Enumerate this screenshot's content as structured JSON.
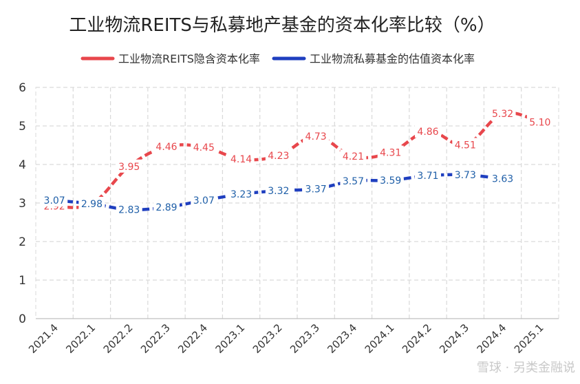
{
  "chart_data": {
    "type": "line",
    "title": "工业物流REITS与私募地产基金的资本化率比较（%）",
    "categories": [
      "2021.4",
      "2022.1",
      "2022.2",
      "2022.3",
      "2022.4",
      "2023.1",
      "2023.2",
      "2023.3",
      "2023.4",
      "2024.1",
      "2024.2",
      "2024.3",
      "2024.4",
      "2025.1"
    ],
    "series": [
      {
        "name": "工业物流REITS隐含资本化率",
        "color": "#e8474c",
        "values": [
          2.92,
          2.98,
          3.95,
          4.46,
          4.45,
          4.14,
          4.23,
          4.73,
          4.21,
          4.31,
          4.86,
          4.51,
          5.32,
          5.1
        ]
      },
      {
        "name": "工业物流私募基金的估值资本化率",
        "color": "#1f3fbf",
        "label_color": "#1f5fa8",
        "values": [
          3.07,
          2.98,
          2.83,
          2.89,
          3.07,
          3.23,
          3.32,
          3.37,
          3.57,
          3.59,
          3.71,
          3.73,
          3.63,
          null
        ]
      }
    ],
    "yticks": [
      "0",
      "1",
      "2",
      "3",
      "4",
      "5",
      "6"
    ],
    "ylim": [
      0,
      6
    ],
    "grid": true,
    "legend_position": "top"
  },
  "watermark": "雪球 · 另类金融说"
}
